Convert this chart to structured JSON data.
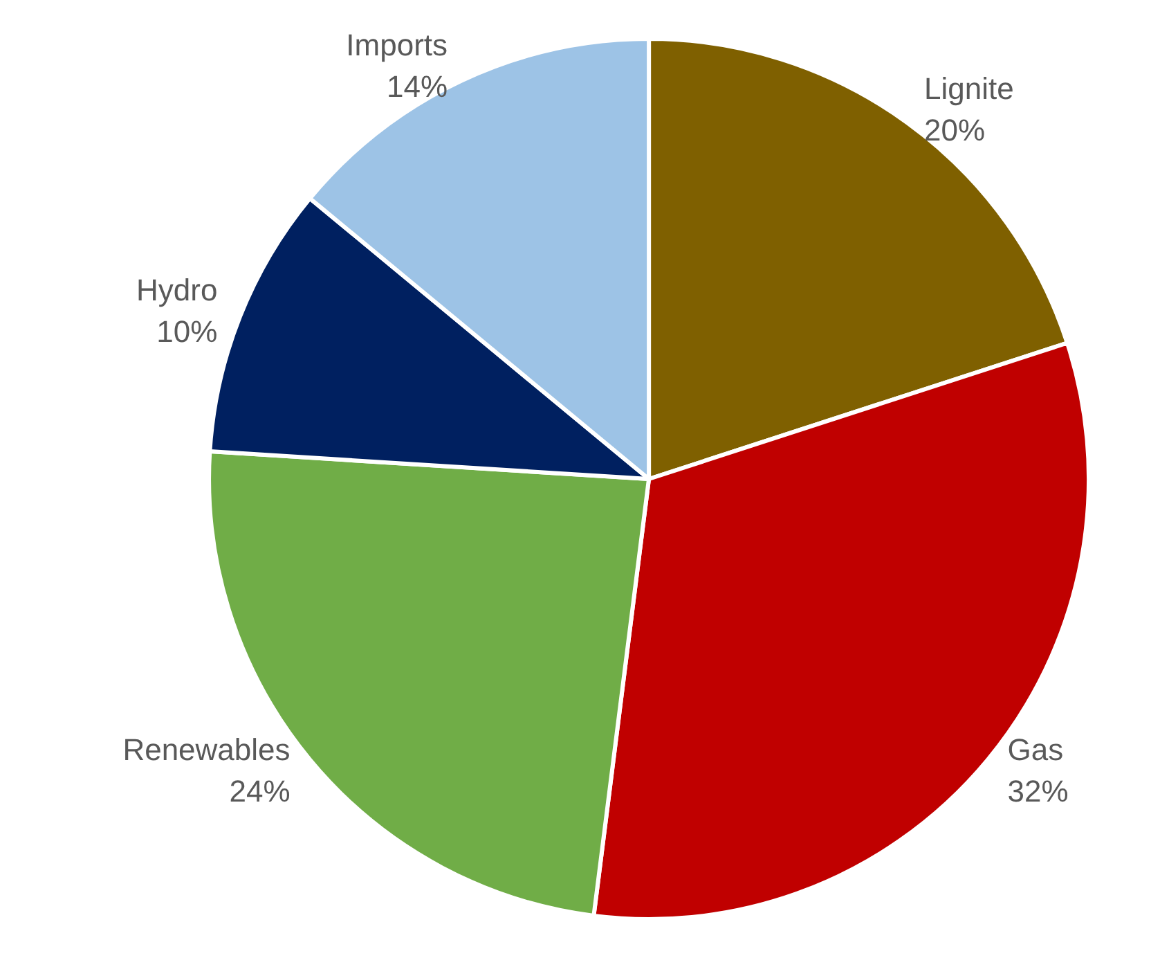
{
  "chart_data": {
    "type": "pie",
    "categories": [
      "Lignite",
      "Gas",
      "Renewables",
      "Hydro",
      "Imports"
    ],
    "values": [
      20,
      32,
      24,
      10,
      14
    ],
    "value_labels": [
      "20%",
      "32%",
      "24%",
      "10%",
      "14%"
    ],
    "colors": [
      "#7f6000",
      "#c00000",
      "#70ad47",
      "#002060",
      "#9dc3e6"
    ],
    "legend": false
  }
}
